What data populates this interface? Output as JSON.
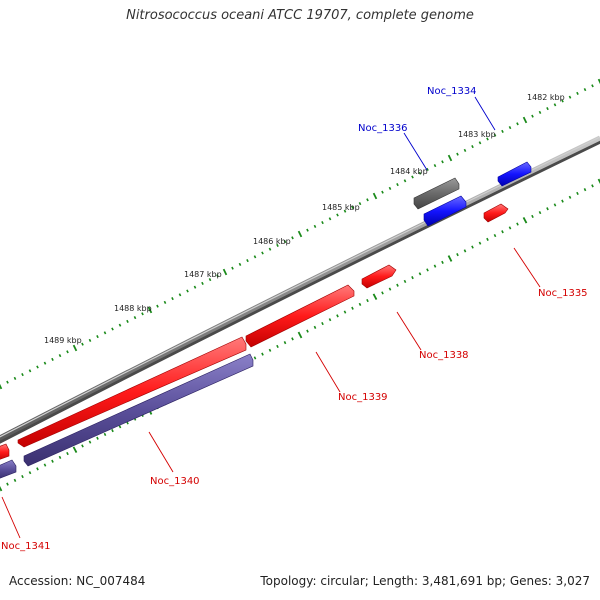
{
  "title": "Nitrosococcus oceani ATCC 19707, complete genome",
  "footer": {
    "accession": "Accession: NC_007484",
    "summary": "Topology: circular; Length: 3,481,691 bp; Genes: 3,027"
  },
  "colors": {
    "backbone": "#8a8a8a",
    "forward_gene": "#ff2020",
    "reverse_gene": "#5a4f9a",
    "highlight_gene": "#1414ff",
    "gray_gene": "#666666",
    "tick": "#1a8a1a",
    "label_red": "#d40000",
    "label_blue": "#0000cc"
  },
  "scale_labels": [
    "1482 kbp",
    "1483 kbp",
    "1484 kbp",
    "1485 kbp",
    "1486 kbp",
    "1487 kbp",
    "1488 kbp",
    "1489 kbp"
  ],
  "genes": [
    {
      "name": "Noc_1334",
      "style": "blue"
    },
    {
      "name": "Noc_1335",
      "style": "red"
    },
    {
      "name": "Noc_1336",
      "style": "blue"
    },
    {
      "name": "Noc_1338",
      "style": "red"
    },
    {
      "name": "Noc_1339",
      "style": "red"
    },
    {
      "name": "Noc_1340",
      "style": "red"
    },
    {
      "name": "Noc_1341",
      "style": "red"
    }
  ]
}
